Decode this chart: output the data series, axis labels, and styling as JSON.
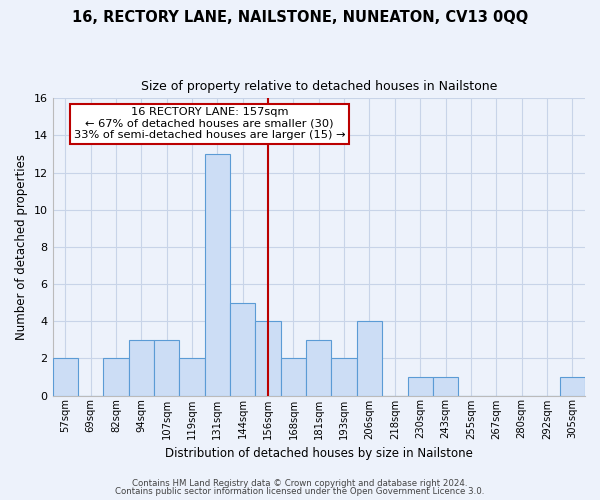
{
  "title": "16, RECTORY LANE, NAILSTONE, NUNEATON, CV13 0QQ",
  "subtitle": "Size of property relative to detached houses in Nailstone",
  "xlabel": "Distribution of detached houses by size in Nailstone",
  "ylabel": "Number of detached properties",
  "bin_labels": [
    "57sqm",
    "69sqm",
    "82sqm",
    "94sqm",
    "107sqm",
    "119sqm",
    "131sqm",
    "144sqm",
    "156sqm",
    "168sqm",
    "181sqm",
    "193sqm",
    "206sqm",
    "218sqm",
    "230sqm",
    "243sqm",
    "255sqm",
    "267sqm",
    "280sqm",
    "292sqm",
    "305sqm"
  ],
  "bar_heights": [
    2,
    0,
    2,
    3,
    3,
    2,
    13,
    5,
    4,
    2,
    3,
    2,
    4,
    0,
    1,
    1,
    0,
    0,
    0,
    0,
    1
  ],
  "bar_color": "#ccddf5",
  "bar_edge_color": "#5b9bd5",
  "grid_color": "#c8d4e8",
  "bg_color": "#edf2fb",
  "vline_x_index": 8,
  "vline_color": "#bb0000",
  "annotation_line1": "16 RECTORY LANE: 157sqm",
  "annotation_line2": "← 67% of detached houses are smaller (30)",
  "annotation_line3": "33% of semi-detached houses are larger (15) →",
  "annotation_box_color": "#bb0000",
  "ylim": [
    0,
    16
  ],
  "yticks": [
    0,
    2,
    4,
    6,
    8,
    10,
    12,
    14,
    16
  ],
  "footer1": "Contains HM Land Registry data © Crown copyright and database right 2024.",
  "footer2": "Contains public sector information licensed under the Open Government Licence 3.0."
}
